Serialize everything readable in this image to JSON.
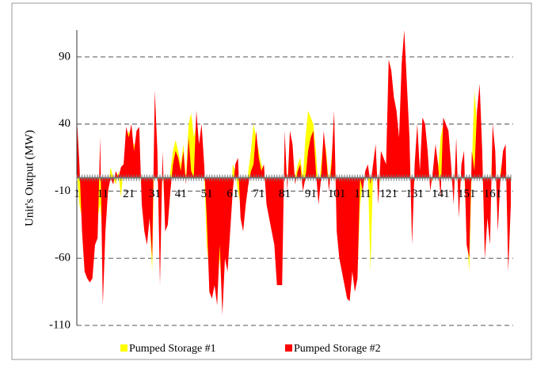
{
  "chart_data": {
    "type": "area",
    "y_label": "Unit's Output (MW)",
    "categories": [
      "1",
      null,
      null,
      null,
      null,
      null,
      null,
      null,
      null,
      null,
      "11",
      null,
      null,
      null,
      null,
      null,
      null,
      null,
      null,
      null,
      "21",
      null,
      null,
      null,
      null,
      null,
      null,
      null,
      null,
      null,
      "31",
      null,
      null,
      null,
      null,
      null,
      null,
      null,
      null,
      null,
      "41",
      null,
      null,
      null,
      null,
      null,
      null,
      null,
      null,
      null,
      "51",
      null,
      null,
      null,
      null,
      null,
      null,
      null,
      null,
      null,
      "61",
      null,
      null,
      null,
      null,
      null,
      null,
      null,
      null,
      null,
      "71",
      null,
      null,
      null,
      null,
      null,
      null,
      null,
      null,
      null,
      "81",
      null,
      null,
      null,
      null,
      null,
      null,
      null,
      null,
      null,
      "91",
      null,
      null,
      null,
      null,
      null,
      null,
      null,
      null,
      null,
      "101",
      null,
      null,
      null,
      null,
      null,
      null,
      null,
      null,
      null,
      "111",
      null,
      null,
      null,
      null,
      null,
      null,
      null,
      null,
      null,
      "121",
      null,
      null,
      null,
      null,
      null,
      null,
      null,
      null,
      null,
      "131",
      null,
      null,
      null,
      null,
      null,
      null,
      null,
      null,
      null,
      "141",
      null,
      null,
      null,
      null,
      null,
      null,
      null,
      null,
      null,
      "151",
      null,
      null,
      null,
      null,
      null,
      null,
      null,
      null,
      null,
      "161",
      null,
      null,
      null,
      null,
      null,
      null,
      null
    ],
    "series": [
      {
        "name": "Pumped Storage #1",
        "color": "#ffff00",
        "values": [
          5,
          -20,
          -30,
          -50,
          -60,
          -55,
          -50,
          -40,
          -30,
          -20,
          -45,
          -30,
          -10,
          8,
          0,
          -5,
          5,
          -15,
          10,
          30,
          35,
          28,
          25,
          20,
          10,
          -10,
          -40,
          -35,
          -30,
          -70,
          40,
          10,
          -60,
          10,
          -30,
          -20,
          5,
          20,
          28,
          20,
          10,
          25,
          0,
          40,
          48,
          30,
          40,
          20,
          30,
          5,
          -50,
          -70,
          -85,
          -75,
          -80,
          -60,
          -90,
          -50,
          -40,
          -30,
          10,
          5,
          -10,
          -20,
          -30,
          -10,
          5,
          20,
          40,
          30,
          20,
          10,
          5,
          -10,
          -20,
          -40,
          -35,
          -60,
          -50,
          -40,
          20,
          -5,
          30,
          20,
          0,
          10,
          15,
          0,
          30,
          50,
          45,
          40,
          20,
          -10,
          10,
          30,
          20,
          -5,
          15,
          40,
          -30,
          -50,
          -60,
          -70,
          -60,
          -75,
          -40,
          -65,
          -70,
          -20,
          -5,
          0,
          5,
          -70,
          5,
          20,
          -15,
          10,
          10,
          5,
          40,
          70,
          50,
          40,
          20,
          60,
          80,
          50,
          20,
          -30,
          5,
          30,
          0,
          30,
          35,
          10,
          -5,
          0,
          20,
          5,
          30,
          40,
          38,
          20,
          5,
          -10,
          20,
          -20,
          5,
          10,
          -40,
          -70,
          10,
          65,
          40,
          50,
          15,
          -50,
          -20,
          -30,
          35,
          15,
          -30,
          5,
          15,
          20,
          -60,
          -15
        ]
      },
      {
        "name": "Pumped Storage #2",
        "color": "#ff0000",
        "values": [
          45,
          10,
          -40,
          -70,
          -75,
          -78,
          -75,
          -50,
          -45,
          30,
          -95,
          -40,
          -10,
          0,
          -5,
          5,
          0,
          8,
          10,
          38,
          30,
          40,
          20,
          35,
          38,
          -20,
          -40,
          -50,
          -30,
          -60,
          65,
          20,
          -80,
          20,
          -40,
          -35,
          -10,
          10,
          20,
          15,
          5,
          20,
          -5,
          30,
          5,
          0,
          50,
          25,
          40,
          10,
          -30,
          -85,
          -90,
          -80,
          -95,
          -50,
          -102,
          -60,
          -70,
          -40,
          -10,
          10,
          15,
          -30,
          -40,
          -20,
          -5,
          5,
          10,
          35,
          15,
          5,
          10,
          -20,
          -30,
          -40,
          -50,
          -80,
          -80,
          -80,
          35,
          -10,
          35,
          25,
          -5,
          5,
          10,
          -10,
          0,
          20,
          30,
          35,
          5,
          -20,
          0,
          35,
          15,
          -10,
          10,
          50,
          -40,
          -60,
          -70,
          -80,
          -90,
          -92,
          -70,
          -85,
          -75,
          0,
          -10,
          5,
          10,
          -5,
          10,
          25,
          -20,
          20,
          15,
          10,
          88,
          80,
          60,
          50,
          30,
          85,
          110,
          70,
          30,
          -50,
          10,
          40,
          5,
          45,
          40,
          20,
          -10,
          5,
          25,
          10,
          -15,
          45,
          40,
          35,
          10,
          -20,
          30,
          -30,
          10,
          20,
          -50,
          -60,
          20,
          5,
          50,
          70,
          20,
          -60,
          -30,
          -50,
          40,
          20,
          -40,
          0,
          20,
          25,
          -70,
          -20
        ]
      }
    ],
    "ylim": [
      -110,
      110
    ],
    "yticks": [
      -110,
      -60,
      -10,
      40,
      90
    ],
    "grid": true,
    "legend": "bottom"
  }
}
